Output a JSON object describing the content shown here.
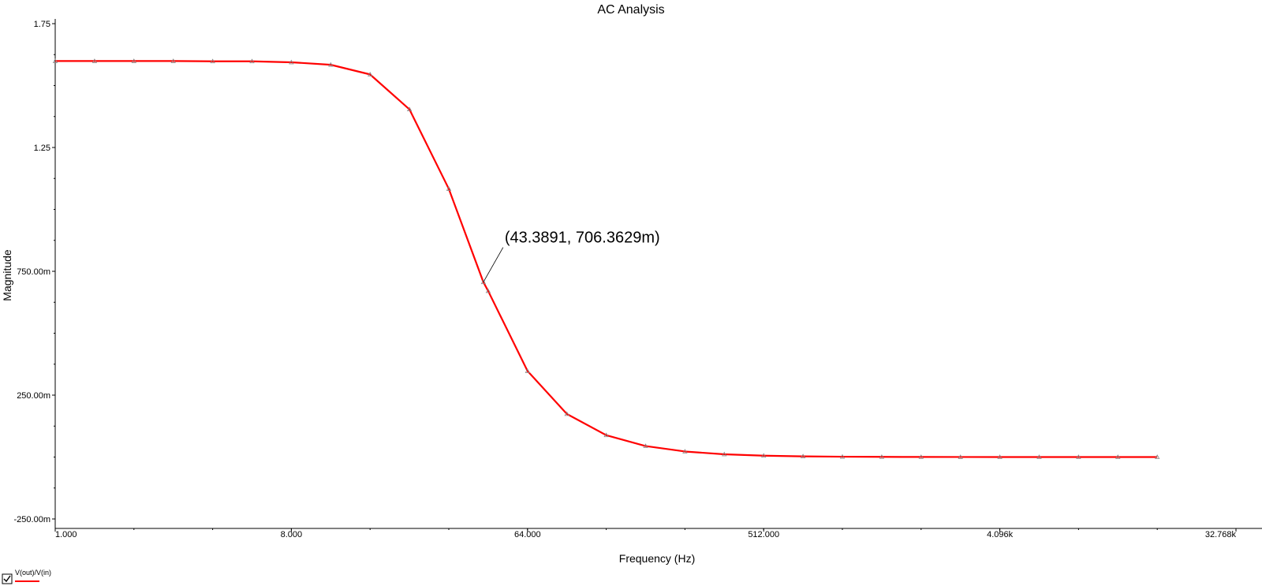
{
  "chart_data": {
    "type": "line",
    "title": "AC Analysis",
    "xlabel": "Frequency (Hz)",
    "ylabel": "Magnitude",
    "x_scale": "log2",
    "xlim": [
      1,
      32768
    ],
    "ylim": [
      -0.25,
      1.75
    ],
    "x_tick_values": [
      1,
      8,
      64,
      512,
      4096,
      32768
    ],
    "x_tick_labels": [
      "1.000",
      "8.000",
      "64.000",
      "512.000",
      "4.096k",
      "32.768k"
    ],
    "y_tick_values": [
      -0.25,
      0.25,
      0.75,
      1.25,
      1.75
    ],
    "y_tick_labels": [
      "-250.00m",
      "250.00m",
      "750.00m",
      "1.25",
      "1.75"
    ],
    "grid": false,
    "series": [
      {
        "name": "V(out)/V(in)",
        "color": "#ff0000",
        "x": [
          1,
          1.4142,
          2,
          2.8284,
          4,
          5.6569,
          8,
          11.3137,
          16,
          22.6274,
          32,
          43.3891,
          45.2548,
          64,
          90.5097,
          128,
          181.0193,
          256,
          362.0387,
          512,
          724.0773,
          1024,
          1448.1547,
          2048,
          2896.3094,
          4096,
          5792.6188,
          8192,
          11585.2375,
          16384
        ],
        "y": [
          1.599,
          1.599,
          1.599,
          1.599,
          1.598,
          1.598,
          1.594,
          1.584,
          1.545,
          1.404,
          1.083,
          0.7064,
          0.6706,
          0.3474,
          0.174,
          0.0883,
          0.0445,
          0.0224,
          0.0112,
          0.0056,
          0.0028,
          0.0014,
          0.0007,
          0.0003,
          0.0002,
          0.0001,
          0.0001,
          0.0,
          0.0,
          0.0
        ]
      }
    ],
    "annotations": [
      {
        "text": "(43.3891, 706.3629m)",
        "x": 43.3891,
        "y": 0.7064
      }
    ],
    "legend": {
      "entries": [
        "V(out)/V(in)"
      ],
      "placement": "bottom-left"
    }
  }
}
